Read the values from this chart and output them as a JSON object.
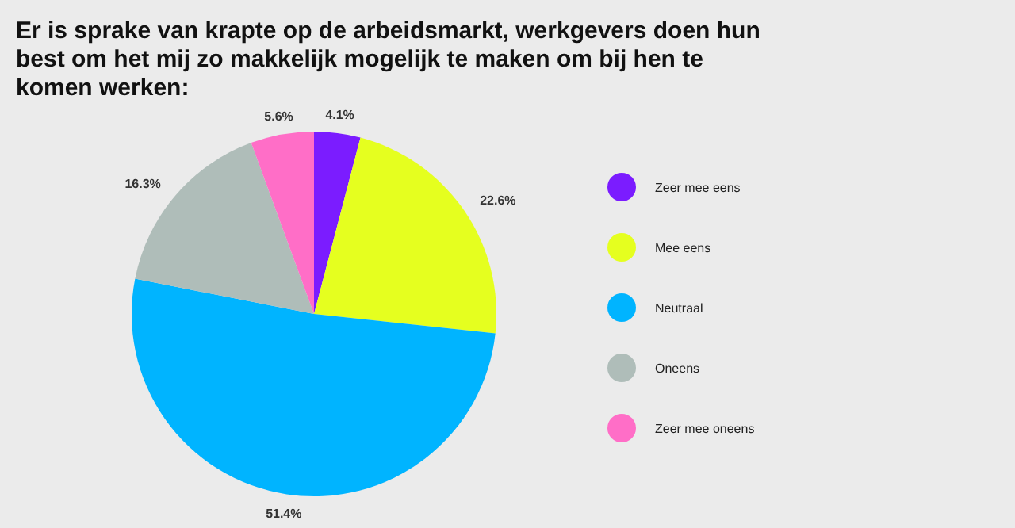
{
  "chart_data": {
    "type": "pie",
    "title": "Er is sprake van krapte op de arbeidsmarkt, werkgevers doen hun best om het mij zo makkelijk mogelijk te maken om bij hen te komen werken:",
    "categories": [
      "Zeer mee eens",
      "Mee eens",
      "Neutraal",
      "Oneens",
      "Zeer mee oneens"
    ],
    "values": [
      4.1,
      22.6,
      51.4,
      16.3,
      5.6
    ],
    "value_labels": [
      "4.1%",
      "22.6%",
      "51.4%",
      "16.3%",
      "5.6%"
    ],
    "colors": [
      "#7b1cff",
      "#e5ff1f",
      "#00b4ff",
      "#afbdb9",
      "#ff6ec7"
    ],
    "legend": "right"
  }
}
